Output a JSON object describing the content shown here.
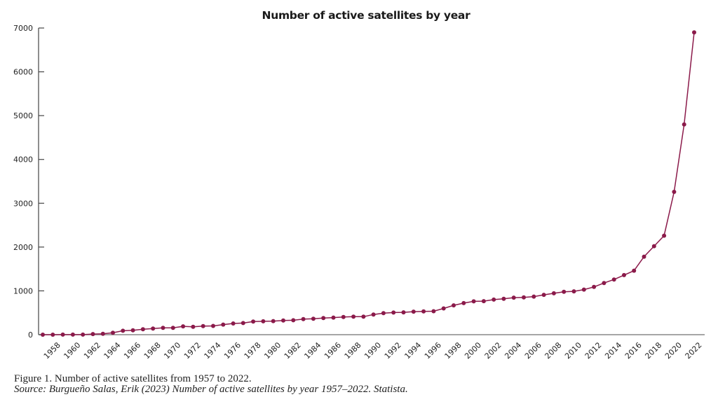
{
  "chart_data": {
    "type": "line",
    "title": "Number of active satellites by year",
    "xlabel": "",
    "ylabel": "",
    "ylim": [
      0,
      7000
    ],
    "xlim": [
      1957,
      2022
    ],
    "yticks": [
      0,
      1000,
      2000,
      3000,
      4000,
      5000,
      6000,
      7000
    ],
    "xticks": [
      1958,
      1960,
      1962,
      1964,
      1966,
      1968,
      1970,
      1972,
      1974,
      1976,
      1978,
      1980,
      1982,
      1984,
      1986,
      1988,
      1990,
      1992,
      1994,
      1996,
      1998,
      2000,
      2002,
      2004,
      2006,
      2008,
      2010,
      2012,
      2014,
      2016,
      2018,
      2020,
      2022
    ],
    "grid": false,
    "legend": "none",
    "line_color": "#8b1a4a",
    "series": [
      {
        "name": "Active satellites",
        "x": [
          1957,
          1958,
          1959,
          1960,
          1961,
          1962,
          1963,
          1964,
          1965,
          1966,
          1967,
          1968,
          1969,
          1970,
          1971,
          1972,
          1973,
          1974,
          1975,
          1976,
          1977,
          1978,
          1979,
          1980,
          1981,
          1982,
          1983,
          1984,
          1985,
          1986,
          1987,
          1988,
          1989,
          1990,
          1991,
          1992,
          1993,
          1994,
          1995,
          1996,
          1997,
          1998,
          1999,
          2000,
          2001,
          2002,
          2003,
          2004,
          2005,
          2006,
          2007,
          2008,
          2009,
          2010,
          2011,
          2012,
          2013,
          2014,
          2015,
          2016,
          2017,
          2018,
          2019,
          2020,
          2021,
          2022
        ],
        "values": [
          0,
          0,
          1,
          2,
          2,
          15,
          20,
          45,
          90,
          100,
          125,
          140,
          155,
          155,
          190,
          180,
          195,
          200,
          230,
          255,
          265,
          300,
          305,
          310,
          325,
          330,
          355,
          365,
          380,
          390,
          405,
          410,
          410,
          460,
          490,
          505,
          510,
          525,
          530,
          535,
          600,
          670,
          720,
          760,
          765,
          800,
          820,
          845,
          850,
          870,
          910,
          945,
          980,
          990,
          1030,
          1090,
          1180,
          1260,
          1360,
          1460,
          1780,
          2020,
          2260,
          3260,
          4800,
          6900
        ]
      }
    ]
  },
  "caption": {
    "figure": "Figure 1. Number of active satellites from 1957 to 2022.",
    "source": "Source: Burgueño Salas, Erik (2023) Number of active satellites by year 1957–2022. Statista."
  }
}
